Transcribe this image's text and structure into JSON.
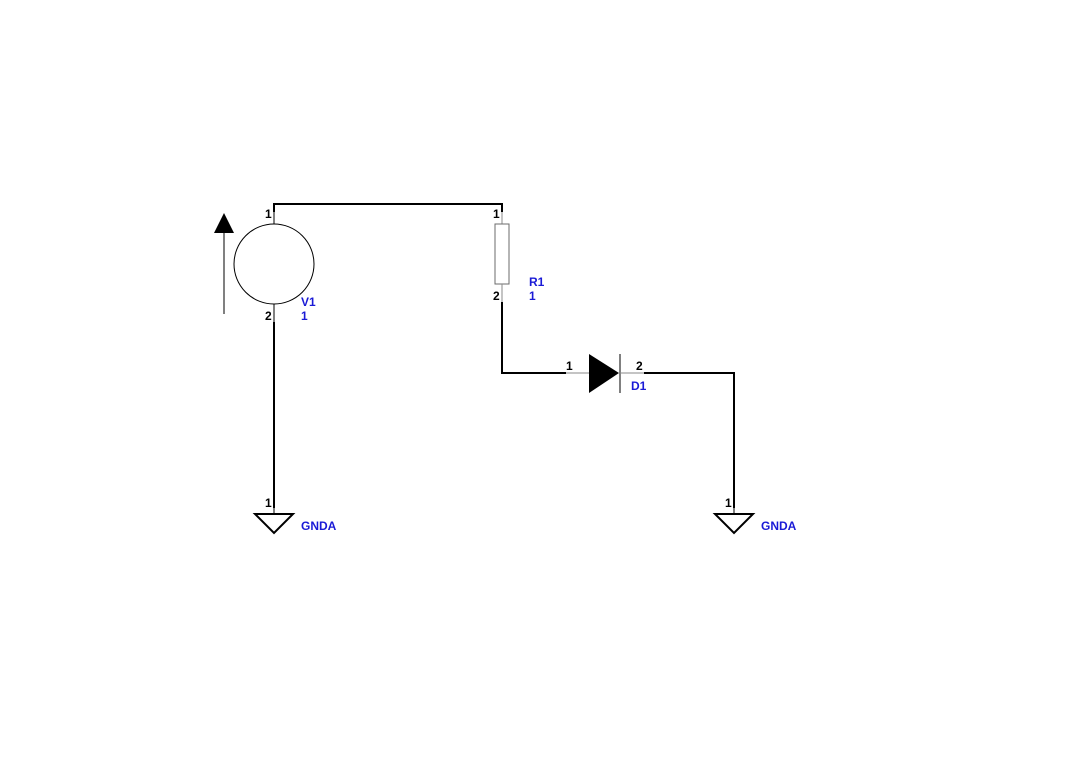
{
  "colors": {
    "label": "#1a1ad6",
    "wire": "#000000",
    "background": "#ffffff"
  },
  "components": {
    "v1": {
      "ref": "V1",
      "value": "1",
      "pin1": "1",
      "pin2": "2"
    },
    "r1": {
      "ref": "R1",
      "value": "1",
      "pin1": "1",
      "pin2": "2"
    },
    "d1": {
      "ref": "D1",
      "pin1": "1",
      "pin2": "2"
    },
    "gnd_left": {
      "label": "GNDA",
      "pin": "1"
    },
    "gnd_right": {
      "label": "GNDA",
      "pin": "1"
    }
  }
}
